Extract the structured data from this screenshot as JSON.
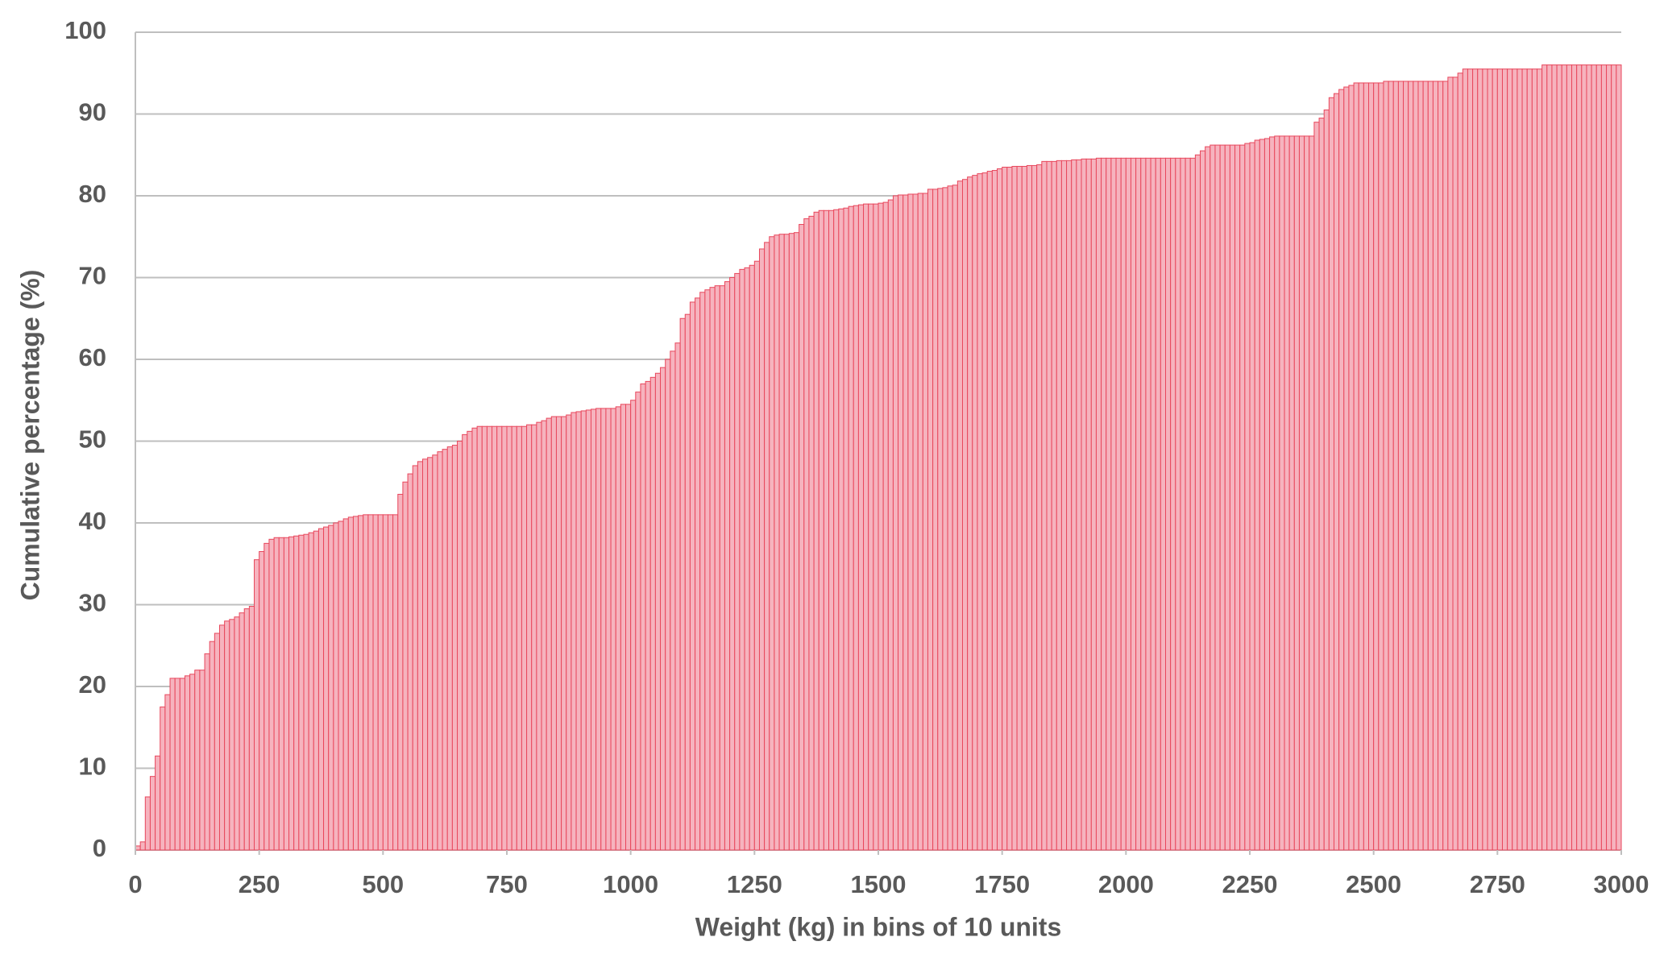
{
  "chart_data": {
    "type": "histogram",
    "x_label": "Weight (kg) in bins of 10 units",
    "y_label": "Cumulative percentage (%)",
    "color": "#f6b3be",
    "edge_color": "#e8475c",
    "grid": true,
    "xlim": [
      0,
      3000
    ],
    "ylim": [
      0,
      100
    ],
    "xticks": [
      0,
      250,
      500,
      750,
      1000,
      1250,
      1500,
      1750,
      2000,
      2250,
      2500,
      2750,
      3000
    ],
    "yticks": [
      0,
      10,
      20,
      30,
      40,
      50,
      60,
      70,
      80,
      90,
      100
    ],
    "bins": [
      0,
      10,
      20,
      30,
      40,
      50,
      60,
      70,
      80,
      90,
      100,
      110,
      120,
      130,
      140,
      150,
      160,
      170,
      180,
      190,
      200,
      210,
      220,
      230,
      240,
      250,
      260,
      270,
      280,
      290,
      300,
      310,
      320,
      330,
      340,
      350,
      360,
      370,
      380,
      390,
      400,
      410,
      420,
      430,
      440,
      450,
      460,
      470,
      480,
      490,
      500,
      510,
      520,
      530,
      540,
      550,
      560,
      570,
      580,
      590,
      600,
      610,
      620,
      630,
      640,
      650,
      660,
      670,
      680,
      690,
      700,
      710,
      720,
      730,
      740,
      750,
      760,
      770,
      780,
      790,
      800,
      810,
      820,
      830,
      840,
      850,
      860,
      870,
      880,
      890,
      900,
      910,
      920,
      930,
      940,
      950,
      960,
      970,
      980,
      990,
      1000,
      1010,
      1020,
      1030,
      1040,
      1050,
      1060,
      1070,
      1080,
      1090,
      1100,
      1110,
      1120,
      1130,
      1140,
      1150,
      1160,
      1170,
      1180,
      1190,
      1200,
      1210,
      1220,
      1230,
      1240,
      1250,
      1260,
      1270,
      1280,
      1290,
      1300,
      1310,
      1320,
      1330,
      1340,
      1350,
      1360,
      1370,
      1380,
      1390,
      1400,
      1410,
      1420,
      1430,
      1440,
      1450,
      1460,
      1470,
      1480,
      1490,
      1500,
      1510,
      1520,
      1530,
      1540,
      1550,
      1560,
      1570,
      1580,
      1590,
      1600,
      1610,
      1620,
      1630,
      1640,
      1650,
      1660,
      1670,
      1680,
      1690,
      1700,
      1710,
      1720,
      1730,
      1740,
      1750,
      1760,
      1770,
      1780,
      1790,
      1800,
      1810,
      1820,
      1830,
      1840,
      1850,
      1860,
      1870,
      1880,
      1890,
      1900,
      1910,
      1920,
      1930,
      1940,
      1950,
      1960,
      1970,
      1980,
      1990,
      2000,
      2010,
      2020,
      2030,
      2040,
      2050,
      2060,
      2070,
      2080,
      2090,
      2100,
      2110,
      2120,
      2130,
      2140,
      2150,
      2160,
      2170,
      2180,
      2190,
      2200,
      2210,
      2220,
      2230,
      2240,
      2250,
      2260,
      2270,
      2280,
      2290,
      2300,
      2310,
      2320,
      2330,
      2340,
      2350,
      2360,
      2370,
      2380,
      2390,
      2400,
      2410,
      2420,
      2430,
      2440,
      2450,
      2460,
      2470,
      2480,
      2490,
      2500,
      2510,
      2520,
      2530,
      2540,
      2550,
      2560,
      2570,
      2580,
      2590,
      2600,
      2610,
      2620,
      2630,
      2640,
      2650,
      2660,
      2670,
      2680,
      2690,
      2700,
      2710,
      2720,
      2730,
      2740,
      2750,
      2760,
      2770,
      2780,
      2790,
      2800,
      2810,
      2820,
      2830,
      2840,
      2850,
      2860,
      2870,
      2880,
      2890,
      2900,
      2910,
      2920,
      2930,
      2940,
      2950,
      2960,
      2970,
      2980,
      2990,
      3000
    ],
    "values": [
      0.5,
      1,
      6.5,
      9,
      11.5,
      17.5,
      19,
      21,
      21,
      21,
      21.3,
      21.5,
      22,
      22,
      24,
      25.5,
      26.5,
      27.5,
      28,
      28.2,
      28.5,
      29,
      29.5,
      29.8,
      35.5,
      36.5,
      37.5,
      38,
      38.2,
      38.2,
      38.2,
      38.3,
      38.4,
      38.5,
      38.6,
      38.8,
      39,
      39.3,
      39.5,
      39.7,
      40,
      40.2,
      40.5,
      40.7,
      40.8,
      40.9,
      41,
      41,
      41,
      41,
      41,
      41,
      41,
      43.5,
      45,
      46,
      47,
      47.5,
      47.8,
      48,
      48.3,
      48.7,
      49,
      49.3,
      49.5,
      50,
      50.8,
      51.2,
      51.6,
      51.8,
      51.8,
      51.8,
      51.8,
      51.8,
      51.8,
      51.8,
      51.8,
      51.8,
      51.8,
      52,
      52,
      52.3,
      52.5,
      52.8,
      53,
      53,
      53,
      53.2,
      53.5,
      53.6,
      53.7,
      53.8,
      53.9,
      54,
      54,
      54,
      54,
      54.2,
      54.5,
      54.5,
      55,
      56,
      57,
      57.3,
      57.8,
      58.3,
      59,
      60,
      61,
      62,
      65,
      65.5,
      67,
      67.5,
      68.2,
      68.5,
      68.8,
      69,
      69,
      69.5,
      70,
      70.5,
      71,
      71.2,
      71.5,
      72,
      73.5,
      74.3,
      75,
      75.2,
      75.3,
      75.3,
      75.4,
      75.5,
      76.5,
      77.2,
      77.5,
      78,
      78.2,
      78.2,
      78.2,
      78.3,
      78.4,
      78.5,
      78.7,
      78.8,
      78.9,
      79,
      79,
      79,
      79.1,
      79.2,
      79.5,
      80,
      80.1,
      80.1,
      80.2,
      80.2,
      80.3,
      80.3,
      80.8,
      80.8,
      80.9,
      81,
      81.2,
      81.3,
      81.8,
      82,
      82.3,
      82.5,
      82.7,
      82.8,
      83,
      83.1,
      83.3,
      83.5,
      83.5,
      83.6,
      83.6,
      83.6,
      83.7,
      83.7,
      83.8,
      84.2,
      84.2,
      84.2,
      84.3,
      84.3,
      84.3,
      84.4,
      84.4,
      84.5,
      84.5,
      84.5,
      84.6,
      84.6,
      84.6,
      84.6,
      84.6,
      84.6,
      84.6,
      84.6,
      84.6,
      84.6,
      84.6,
      84.6,
      84.6,
      84.6,
      84.6,
      84.6,
      84.6,
      84.6,
      84.6,
      84.6,
      85,
      85.5,
      86,
      86.2,
      86.2,
      86.2,
      86.2,
      86.2,
      86.2,
      86.2,
      86.4,
      86.5,
      86.8,
      86.9,
      87,
      87.2,
      87.3,
      87.3,
      87.3,
      87.3,
      87.3,
      87.3,
      87.3,
      87.3,
      89,
      89.5,
      90.5,
      92,
      92.5,
      93,
      93.3,
      93.5,
      93.8,
      93.8,
      93.8,
      93.8,
      93.8,
      93.8,
      94,
      94,
      94,
      94,
      94,
      94,
      94,
      94,
      94,
      94,
      94,
      94,
      94,
      94.5,
      94.5,
      95,
      95.5,
      95.5,
      95.5,
      95.5,
      95.5,
      95.5,
      95.5,
      95.5,
      95.5,
      95.5,
      95.5,
      95.5,
      95.5,
      95.5,
      95.5,
      95.5,
      96,
      96,
      96,
      96,
      96,
      96,
      96,
      96,
      96,
      96,
      96,
      96,
      96,
      96,
      96,
      96
    ]
  }
}
